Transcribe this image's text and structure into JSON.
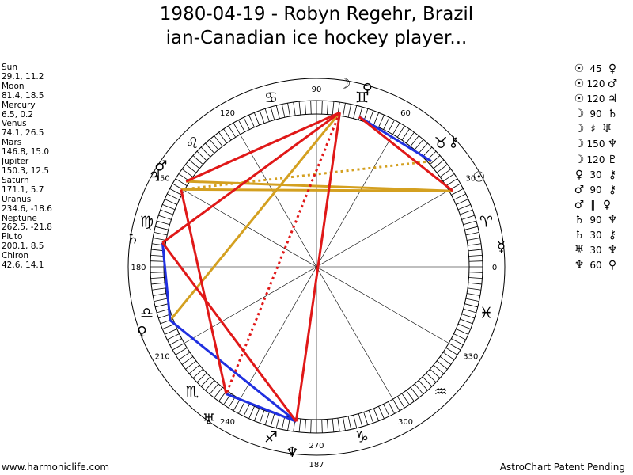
{
  "title_line1": "1980-04-19 - Robyn Regehr, Brazil",
  "title_line2": "ian-Canadian ice hockey player...",
  "positions": [
    {
      "name": "Sun",
      "value": "29.1, 11.2"
    },
    {
      "name": "Moon",
      "value": "81.4, 18.5"
    },
    {
      "name": "Mercury",
      "value": "6.5, 0.2"
    },
    {
      "name": "Venus",
      "value": "74.1, 26.5"
    },
    {
      "name": "Mars",
      "value": "146.8, 15.0"
    },
    {
      "name": "Jupiter",
      "value": "150.3, 12.5"
    },
    {
      "name": "Saturn",
      "value": "171.1, 5.7"
    },
    {
      "name": "Uranus",
      "value": "234.6, -18.6"
    },
    {
      "name": "Neptune",
      "value": "262.5, -21.8"
    },
    {
      "name": "Pluto",
      "value": "200.1, 8.5"
    },
    {
      "name": "Chiron",
      "value": "42.6, 14.1"
    }
  ],
  "aspects": [
    {
      "p1": "☉",
      "sym": "",
      "angle": "45",
      "p2": "♀"
    },
    {
      "p1": "☉",
      "sym": "",
      "angle": "120",
      "p2": "♂"
    },
    {
      "p1": "☉",
      "sym": "",
      "angle": "120",
      "p2": "♃"
    },
    {
      "p1": "☽",
      "sym": "",
      "angle": "90",
      "p2": "♄"
    },
    {
      "p1": "☽",
      "sym": "♯",
      "angle": "",
      "p2": "♅"
    },
    {
      "p1": "☽",
      "sym": "",
      "angle": "150",
      "p2": "♆"
    },
    {
      "p1": "☽",
      "sym": "",
      "angle": "120",
      "p2": "♇"
    },
    {
      "p1": "♀",
      "sym": "",
      "angle": "30",
      "p2": "⚷"
    },
    {
      "p1": "♂",
      "sym": "",
      "angle": "90",
      "p2": "⚷"
    },
    {
      "p1": "♂",
      "sym": "∥",
      "angle": "",
      "p2": "♀"
    },
    {
      "p1": "♄",
      "sym": "",
      "angle": "90",
      "p2": "♆"
    },
    {
      "p1": "♄",
      "sym": "",
      "angle": "30",
      "p2": "⚷"
    },
    {
      "p1": "♅",
      "sym": "",
      "angle": "30",
      "p2": "♆"
    },
    {
      "p1": "♆",
      "sym": "",
      "angle": "60",
      "p2": "♀"
    }
  ],
  "footer_left": "www.harmoniclife.com",
  "footer_right": "AstroChart Patent Pending",
  "degree_labels": [
    {
      "text": "0",
      "deg": 0
    },
    {
      "text": "30",
      "deg": 30
    },
    {
      "text": "60",
      "deg": 60
    },
    {
      "text": "90",
      "deg": 90
    },
    {
      "text": "120",
      "deg": 120
    },
    {
      "text": "150",
      "deg": 150
    },
    {
      "text": "180",
      "deg": 180
    },
    {
      "text": "210",
      "deg": 210
    },
    {
      "text": "240",
      "deg": 240
    },
    {
      "text": "270",
      "deg": 270
    },
    {
      "text": "300",
      "deg": 300
    },
    {
      "text": "330",
      "deg": 330
    }
  ],
  "extra_labels": [
    {
      "text": "187",
      "deg": 187
    }
  ],
  "zodiac_signs": [
    {
      "glyph": "♈",
      "deg": 15
    },
    {
      "glyph": "♉",
      "deg": 45
    },
    {
      "glyph": "♊",
      "deg": 75
    },
    {
      "glyph": "♋",
      "deg": 105
    },
    {
      "glyph": "♌",
      "deg": 135
    },
    {
      "glyph": "♍",
      "deg": 165
    },
    {
      "glyph": "♎",
      "deg": 195
    },
    {
      "glyph": "♏",
      "deg": 225
    },
    {
      "glyph": "♐",
      "deg": 255
    },
    {
      "glyph": "♑",
      "deg": 285
    },
    {
      "glyph": "♒",
      "deg": 315
    },
    {
      "glyph": "♓",
      "deg": 345
    }
  ],
  "planets": [
    {
      "glyph": "☉",
      "deg": 29.1,
      "name": "sun"
    },
    {
      "glyph": "☽",
      "deg": 81.4,
      "name": "moon"
    },
    {
      "glyph": "☿",
      "deg": 6.5,
      "name": "mercury"
    },
    {
      "glyph": "♀",
      "deg": 74.1,
      "name": "venus"
    },
    {
      "glyph": "♂",
      "deg": 146.8,
      "name": "mars"
    },
    {
      "glyph": "♃",
      "deg": 150.3,
      "name": "jupiter"
    },
    {
      "glyph": "♄",
      "deg": 171.1,
      "name": "saturn"
    },
    {
      "glyph": "♅",
      "deg": 234.6,
      "name": "uranus"
    },
    {
      "glyph": "♆",
      "deg": 262.5,
      "name": "neptune"
    },
    {
      "glyph": "♀",
      "deg": 200.1,
      "name": "pluto"
    },
    {
      "glyph": "⚷",
      "deg": 42.6,
      "name": "chiron"
    }
  ],
  "aspect_lines": [
    {
      "from": 29.1,
      "to": 146.8,
      "color": "#d4a020",
      "style": "solid"
    },
    {
      "from": 29.1,
      "to": 150.3,
      "color": "#d4a020",
      "style": "solid"
    },
    {
      "from": 81.4,
      "to": 200.1,
      "color": "#d4a020",
      "style": "solid"
    },
    {
      "from": 150.3,
      "to": 42.6,
      "color": "#d4a020",
      "style": "dotted"
    },
    {
      "from": 74.1,
      "to": 42.6,
      "color": "#2030e0",
      "style": "solid"
    },
    {
      "from": 171.1,
      "to": 200.1,
      "color": "#2030e0",
      "style": "solid"
    },
    {
      "from": 200.1,
      "to": 262.5,
      "color": "#2030e0",
      "style": "solid"
    },
    {
      "from": 234.6,
      "to": 262.5,
      "color": "#2030e0",
      "style": "solid"
    },
    {
      "from": 74.1,
      "to": 29.1,
      "color": "#e01818",
      "style": "solid"
    },
    {
      "from": 81.4,
      "to": 146.8,
      "color": "#e01818",
      "style": "solid"
    },
    {
      "from": 81.4,
      "to": 171.1,
      "color": "#e01818",
      "style": "solid"
    },
    {
      "from": 81.4,
      "to": 262.5,
      "color": "#e01818",
      "style": "solid"
    },
    {
      "from": 150.3,
      "to": 234.6,
      "color": "#e01818",
      "style": "solid"
    },
    {
      "from": 171.1,
      "to": 262.5,
      "color": "#e01818",
      "style": "solid"
    },
    {
      "from": 81.4,
      "to": 234.6,
      "color": "#e01818",
      "style": "dotted"
    }
  ],
  "colors": {
    "red": "#e01818",
    "blue": "#2030e0",
    "gold": "#d4a020"
  }
}
